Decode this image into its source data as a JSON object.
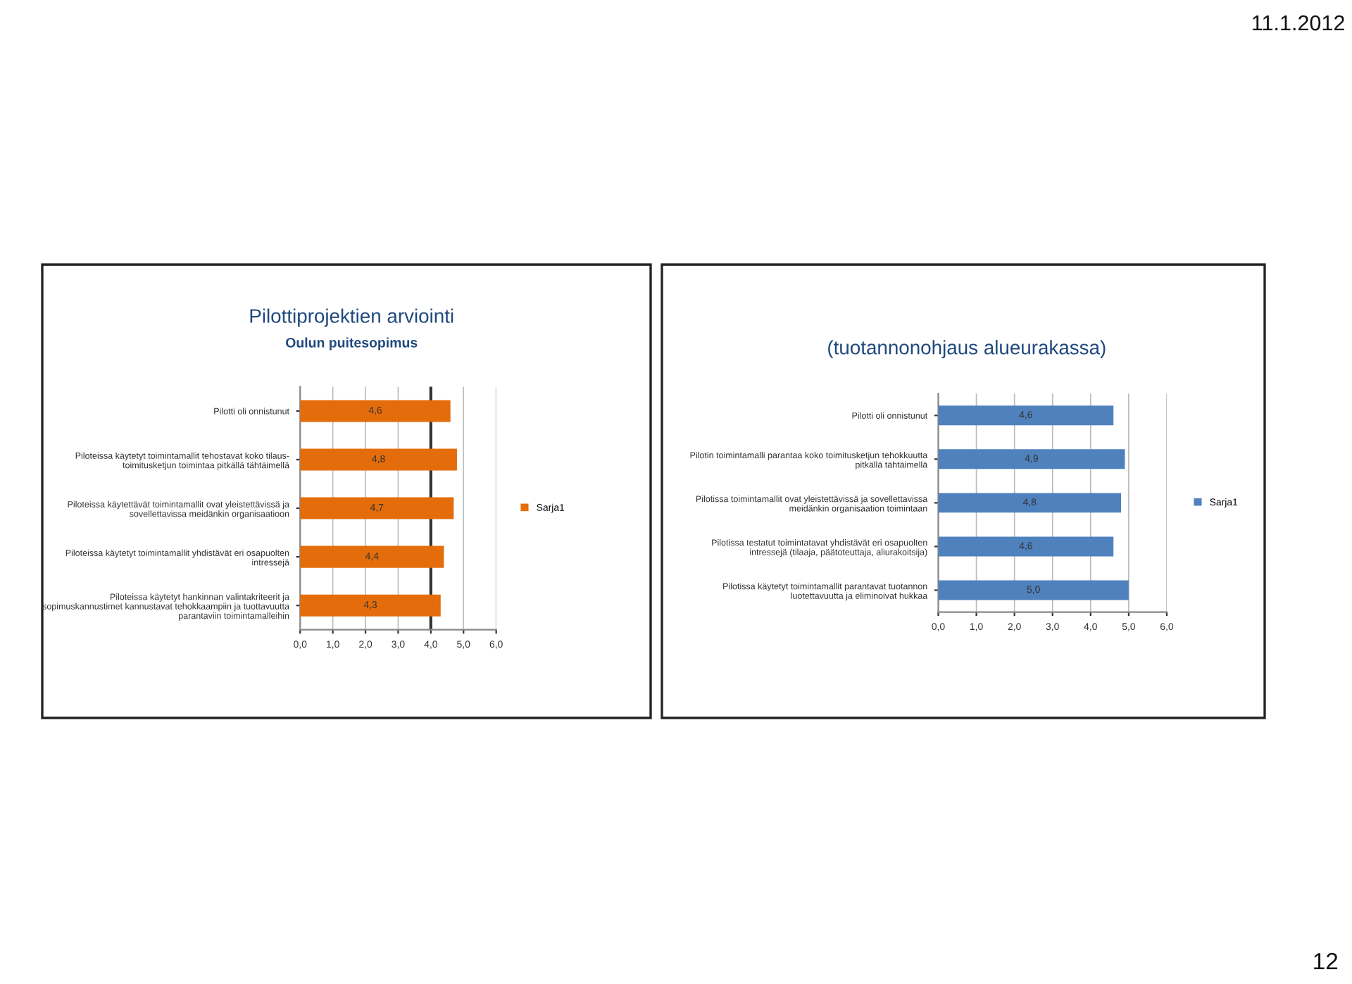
{
  "chart_data": [
    {
      "type": "bar",
      "orientation": "horizontal",
      "title": "Pilottiprojektien arviointi",
      "subtitle": "Oulun puitesopimus",
      "categories": [
        "Pilotti oli onnistunut",
        "Piloteissa käytetyt toimintamallit tehostavat koko tilaus-\ntoimitusketjun toimintaa pitkällä tähtäimellä",
        "Piloteissa käytettävät toimintamallit ovat yleistettävissä ja\nsovellettavissa meidänkin organisaatioon",
        "Piloteissa käytetyt toimintamallit yhdistävät eri osapuolten\nintressejä",
        "Piloteissa käytetyt hankinnan valintakriteerit ja\nsopimuskannustimet kannustavat tehokkaampiin ja tuottavuutta\nparantaviin toimintamalleihin"
      ],
      "series": [
        {
          "name": "Sarja1",
          "color": "#e46c0a",
          "values": [
            4.6,
            4.8,
            4.7,
            4.4,
            4.3
          ],
          "value_labels": [
            "4,6",
            "4,8",
            "4,7",
            "4,4",
            "4,3"
          ]
        }
      ],
      "xlim": [
        0,
        6
      ],
      "xticks": [
        {
          "value": 0,
          "label": "0,0"
        },
        {
          "value": 1,
          "label": "1,0"
        },
        {
          "value": 2,
          "label": "2,0"
        },
        {
          "value": 3,
          "label": "3,0"
        },
        {
          "value": 4,
          "label": "4,0"
        },
        {
          "value": 5,
          "label": "5,0"
        },
        {
          "value": 6,
          "label": "6,0"
        }
      ],
      "ref_lines": [
        {
          "axis": "x",
          "value": 4,
          "color": "#333333"
        }
      ],
      "grid": "x",
      "legend": "right",
      "annotations": [
        "11.1.2012",
        "12"
      ]
    },
    {
      "type": "bar",
      "orientation": "horizontal",
      "title": "(tuotannonohjaus alueurakassa)",
      "categories": [
        "Pilotti oli onnistunut",
        "Pilotin toimintamalli parantaa koko toimitusketjun tehokkuutta\npitkällä tähtäimellä",
        "Pilotissa toimintamallit ovat yleistettävissä ja sovellettavissa\nmeidänkin organisaation toimintaan",
        "Pilotissa testatut toimintatavat yhdistävät eri osapuolten\nintressejä (tilaaja, päätoteuttaja, aliurakoitsija)",
        "Pilotissa käytetyt toimintamallit parantavat tuotannon\nluotettavuutta ja eliminoivat hukkaa"
      ],
      "series": [
        {
          "name": "Sarja1",
          "color": "#4f81bd",
          "values": [
            4.6,
            4.9,
            4.8,
            4.6,
            5.0
          ],
          "value_labels": [
            "4,6",
            "4,9",
            "4,8",
            "4,6",
            "5,0"
          ]
        }
      ],
      "xlim": [
        0,
        6
      ],
      "xticks": [
        {
          "value": 0,
          "label": "0,0"
        },
        {
          "value": 1,
          "label": "1,0"
        },
        {
          "value": 2,
          "label": "2,0"
        },
        {
          "value": 3,
          "label": "3,0"
        },
        {
          "value": 4,
          "label": "4,0"
        },
        {
          "value": 5,
          "label": "5,0"
        },
        {
          "value": 6,
          "label": "6,0"
        }
      ],
      "grid": "x",
      "legend": "right"
    }
  ]
}
